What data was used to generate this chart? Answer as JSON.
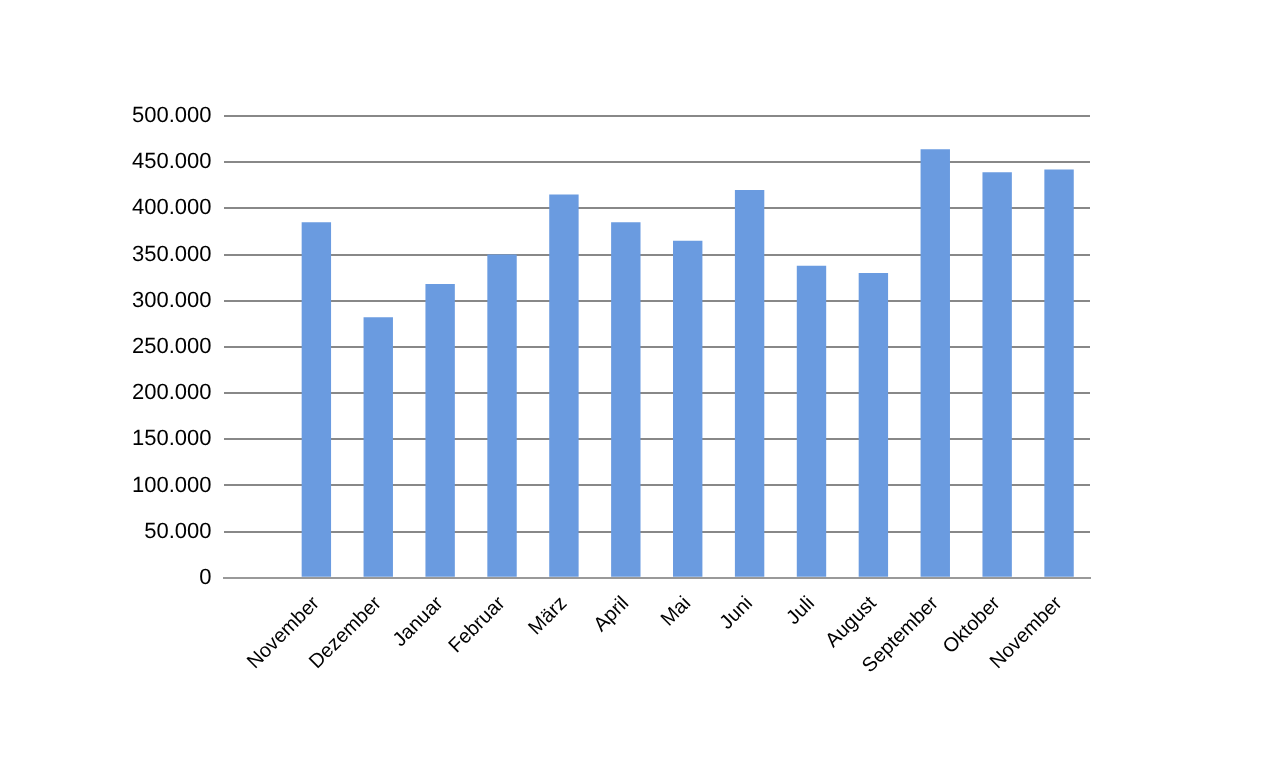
{
  "chart_data": {
    "type": "bar",
    "categories": [
      null,
      "November",
      "Dezember",
      "Januar",
      "Februar",
      "März",
      "April",
      "Mai",
      "Juni",
      "Juli",
      "August",
      "September",
      "Oktober",
      "November"
    ],
    "values": [
      null,
      385000,
      282000,
      318000,
      350000,
      415000,
      385000,
      365000,
      420000,
      338000,
      330000,
      464000,
      439000,
      442000
    ],
    "color": "#6a9be0",
    "ylim": [
      0,
      500000
    ],
    "yticks": [
      {
        "value": 0,
        "label": "0"
      },
      {
        "value": 50000,
        "label": "50.000"
      },
      {
        "value": 100000,
        "label": "100.000"
      },
      {
        "value": 150000,
        "label": "150.000"
      },
      {
        "value": 200000,
        "label": "200.000"
      },
      {
        "value": 250000,
        "label": "250.000"
      },
      {
        "value": 300000,
        "label": "300.000"
      },
      {
        "value": 350000,
        "label": "350.000"
      },
      {
        "value": 400000,
        "label": "400.000"
      },
      {
        "value": 450000,
        "label": "450.000"
      },
      {
        "value": 500000,
        "label": "500.000"
      }
    ],
    "grid": "y",
    "legend": false
  }
}
